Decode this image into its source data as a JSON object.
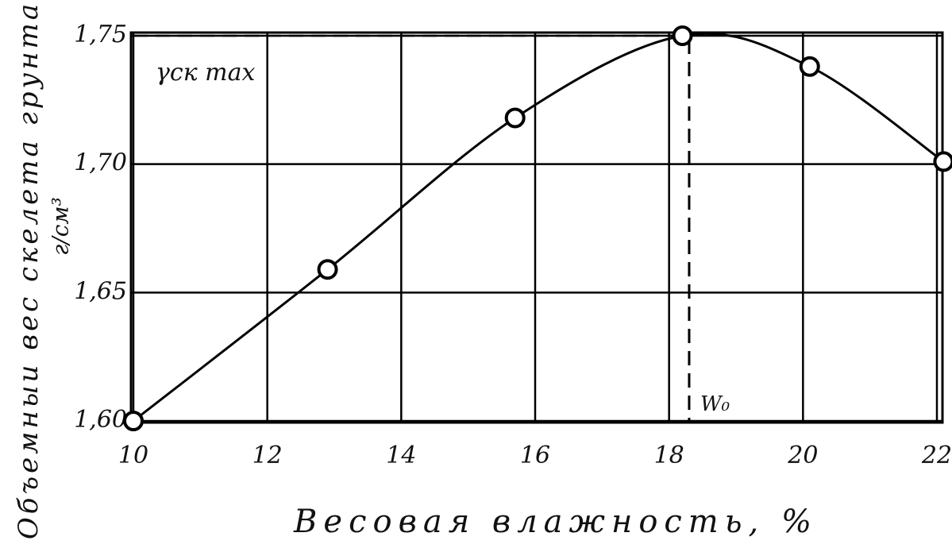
{
  "chart_data": {
    "type": "line",
    "xlabel": "Весовая влажность, %",
    "ylabel": "Объемныи вес скелета грунта",
    "y_unit": "г/см³",
    "x": [
      10,
      12.9,
      15.7,
      18.2,
      20.1,
      22.1
    ],
    "values": [
      1.6,
      1.659,
      1.718,
      1.75,
      1.738,
      1.701
    ],
    "color": "#000000",
    "xlim": [
      10,
      22
    ],
    "xticks": [
      10,
      12,
      14,
      16,
      18,
      20,
      22
    ],
    "ylim": [
      1.6,
      1.75
    ],
    "yticks": [
      {
        "value": 1.6,
        "label": "1,60"
      },
      {
        "value": 1.65,
        "label": "1,65"
      },
      {
        "value": 1.7,
        "label": "1,70"
      },
      {
        "value": 1.75,
        "label": "1,75"
      }
    ],
    "grid": true,
    "annotations": [
      {
        "text": "γск max",
        "y": 1.75
      },
      {
        "text": "W₀",
        "x": 18.3
      }
    ]
  }
}
